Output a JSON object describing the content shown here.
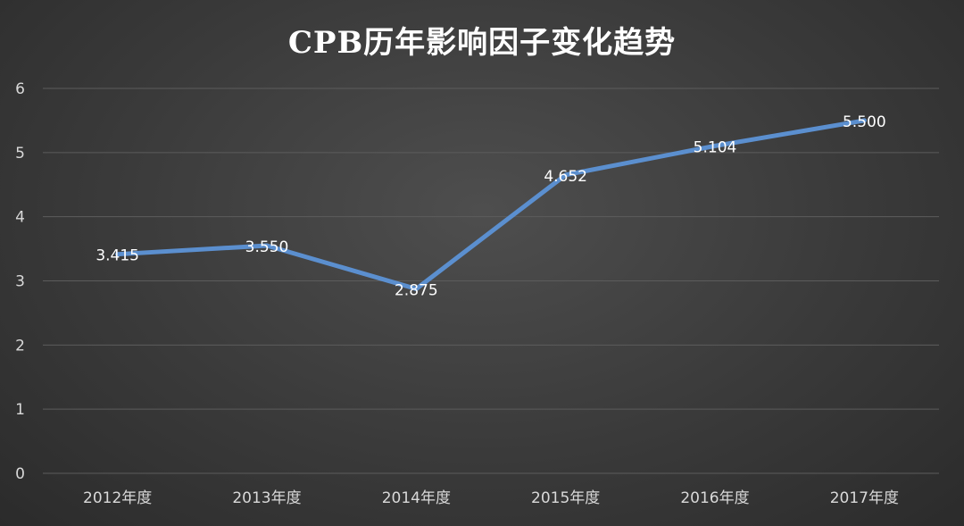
{
  "chart_data": {
    "type": "line",
    "title": "CPB历年影响因子变化趋势",
    "categories": [
      "2012年度",
      "2013年度",
      "2014年度",
      "2015年度",
      "2016年度",
      "2017年度"
    ],
    "series": [
      {
        "values": [
          3.415,
          3.55,
          2.875,
          4.652,
          5.104,
          5.5
        ]
      }
    ],
    "data_labels": [
      "3.415",
      "3.550",
      "2.875",
      "4.652",
      "5.104",
      "5.500"
    ],
    "y_ticks": [
      "0",
      "1",
      "2",
      "3",
      "4",
      "5",
      "6"
    ],
    "ylim": [
      0,
      6
    ],
    "grid": true,
    "line_color": "#5b8fcf",
    "background_color": "#3a3a3a"
  }
}
